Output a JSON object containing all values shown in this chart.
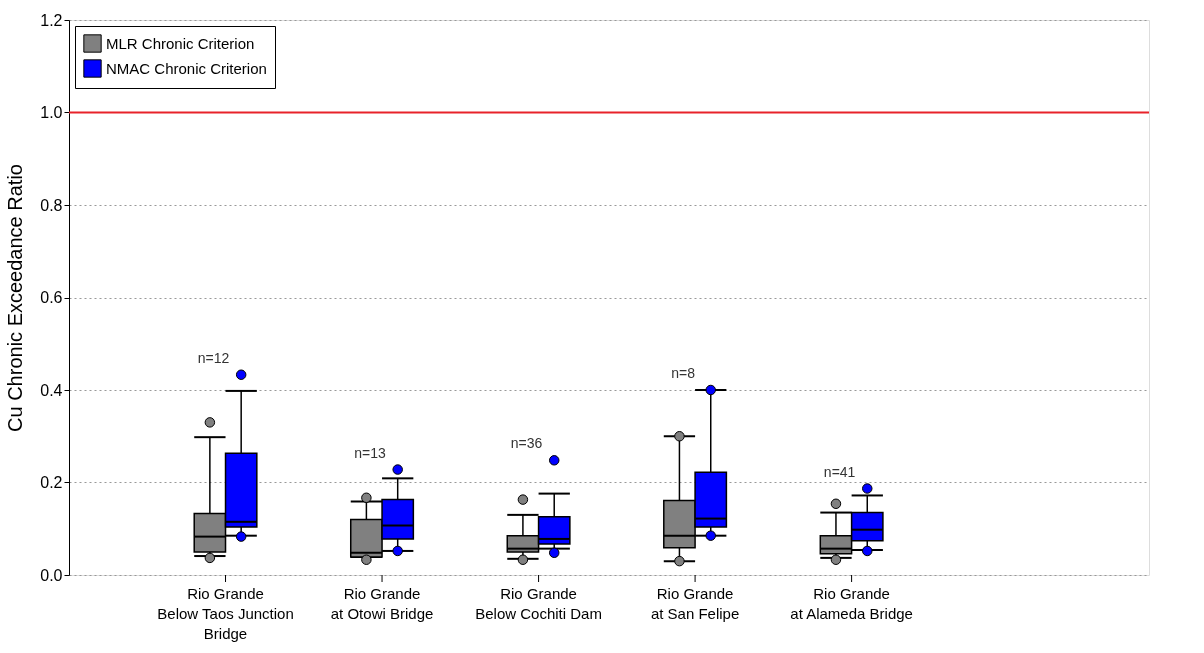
{
  "chart_data": {
    "type": "box",
    "ylabel": "Cu Chronic Exceedance Ratio",
    "categories": [
      "Rio Grande\nBelow Taos Junction\nBridge",
      "Rio Grande\nat Otowi Bridge",
      "Rio Grande\nBelow Cochiti Dam",
      "Rio Grande\nat San Felipe",
      "Rio Grande\nat Alameda Bridge"
    ],
    "series": [
      {
        "name": "MLR Chronic Criterion",
        "color": "#808080",
        "boxes": [
          {
            "low": 0.041,
            "q1": 0.05,
            "median": 0.083,
            "q3": 0.133,
            "high": 0.298,
            "outliers": [
              0.33,
              0.037
            ]
          },
          {
            "low": 0.039,
            "q1": 0.039,
            "median": 0.048,
            "q3": 0.12,
            "high": 0.159,
            "outliers": [
              0.167,
              0.033
            ]
          },
          {
            "low": 0.035,
            "q1": 0.05,
            "median": 0.057,
            "q3": 0.085,
            "high": 0.13,
            "outliers": [
              0.163,
              0.033
            ]
          },
          {
            "low": 0.03,
            "q1": 0.059,
            "median": 0.085,
            "q3": 0.161,
            "high": 0.3,
            "outliers": [
              0.3,
              0.03
            ]
          },
          {
            "low": 0.037,
            "q1": 0.046,
            "median": 0.057,
            "q3": 0.085,
            "high": 0.135,
            "outliers": [
              0.154,
              0.033
            ]
          }
        ]
      },
      {
        "name": "NMAC Chronic Criterion",
        "color": "#0000ff",
        "boxes": [
          {
            "low": 0.085,
            "q1": 0.104,
            "median": 0.115,
            "q3": 0.263,
            "high": 0.398,
            "outliers": [
              0.433,
              0.083
            ]
          },
          {
            "low": 0.052,
            "q1": 0.078,
            "median": 0.107,
            "q3": 0.163,
            "high": 0.209,
            "outliers": [
              0.228,
              0.052
            ]
          },
          {
            "low": 0.057,
            "q1": 0.067,
            "median": 0.078,
            "q3": 0.126,
            "high": 0.176,
            "outliers": [
              0.248,
              0.048
            ]
          },
          {
            "low": 0.085,
            "q1": 0.104,
            "median": 0.122,
            "q3": 0.222,
            "high": 0.4,
            "outliers": [
              0.4,
              0.085
            ]
          },
          {
            "low": 0.054,
            "q1": 0.074,
            "median": 0.098,
            "q3": 0.135,
            "high": 0.172,
            "outliers": [
              0.187,
              0.052
            ]
          }
        ]
      }
    ],
    "ylim": [
      0,
      1.2
    ],
    "yticks": [
      {
        "value": 0,
        "label": "0.0"
      },
      {
        "value": 0.2,
        "label": "0.2"
      },
      {
        "value": 0.4,
        "label": "0.4"
      },
      {
        "value": 0.6,
        "label": "0.6"
      },
      {
        "value": 0.8,
        "label": "0.8"
      },
      {
        "value": 1.0,
        "label": "1.0"
      },
      {
        "value": 1.2,
        "label": "1.2"
      }
    ],
    "grid": "y",
    "legend": "top left",
    "ref_lines": [
      {
        "axis": "y",
        "value": 1.0,
        "color": "#e8222a",
        "line_style": "solid"
      }
    ],
    "annotations": [
      "n=12",
      "n=13",
      "n=36",
      "n=8",
      "n=41"
    ]
  }
}
